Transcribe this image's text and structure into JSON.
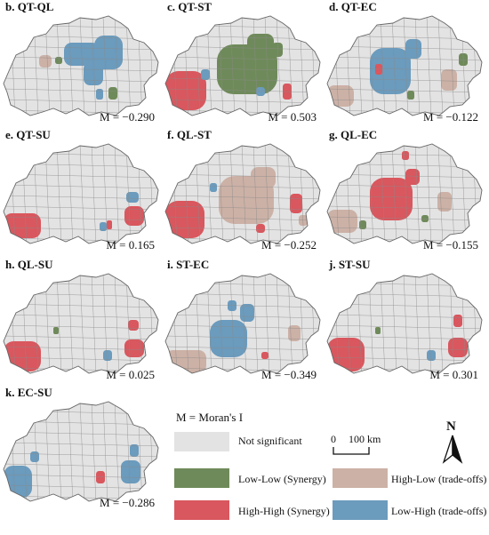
{
  "panels": [
    {
      "id": "b",
      "title": "b. QT-QL",
      "moran": "M = −0.290",
      "col": 0,
      "row": 0,
      "patches": [
        [
          "lh",
          68,
          30,
          40,
          26
        ],
        [
          "lh",
          102,
          22,
          32,
          38
        ],
        [
          "lh",
          90,
          52,
          22,
          26
        ],
        [
          "hl",
          40,
          44,
          14,
          14
        ],
        [
          "ll",
          58,
          46,
          8,
          8
        ],
        [
          "ll",
          118,
          80,
          10,
          14
        ],
        [
          "lh",
          104,
          82,
          8,
          12
        ]
      ]
    },
    {
      "id": "c",
      "title": "c. QT-ST",
      "moran": "M = 0.503",
      "col": 1,
      "row": 0,
      "patches": [
        [
          "ll",
          58,
          32,
          68,
          56
        ],
        [
          "ll",
          92,
          20,
          30,
          24
        ],
        [
          "hh",
          0,
          62,
          46,
          44
        ],
        [
          "hh",
          132,
          76,
          10,
          18
        ],
        [
          "lh",
          102,
          80,
          10,
          10
        ],
        [
          "lh",
          40,
          60,
          10,
          12
        ],
        [
          "ll",
          120,
          30,
          12,
          16
        ]
      ]
    },
    {
      "id": "d",
      "title": "d. QT-EC",
      "moran": "M = −0.122",
      "col": 2,
      "row": 0,
      "patches": [
        [
          "lh",
          48,
          36,
          46,
          52
        ],
        [
          "lh",
          88,
          26,
          18,
          22
        ],
        [
          "hl",
          0,
          78,
          30,
          24
        ],
        [
          "hl",
          128,
          60,
          18,
          24
        ],
        [
          "ll",
          148,
          42,
          10,
          14
        ],
        [
          "hh",
          54,
          54,
          8,
          12
        ],
        [
          "ll",
          90,
          84,
          8,
          10
        ]
      ]
    },
    {
      "id": "e",
      "title": "e. QT-SU",
      "moran": "M = 0.165",
      "col": 0,
      "row": 1,
      "patches": [
        [
          "hh",
          0,
          78,
          42,
          28
        ],
        [
          "hh",
          136,
          70,
          22,
          22
        ],
        [
          "lh",
          138,
          54,
          14,
          12
        ],
        [
          "lh",
          108,
          88,
          8,
          10
        ],
        [
          "hh",
          116,
          86,
          6,
          10
        ]
      ]
    },
    {
      "id": "f",
      "title": "f. QL-ST",
      "moran": "M = −0.252",
      "col": 1,
      "row": 1,
      "patches": [
        [
          "hl",
          60,
          36,
          62,
          54
        ],
        [
          "hl",
          96,
          26,
          28,
          24
        ],
        [
          "hh",
          0,
          64,
          44,
          42
        ],
        [
          "hh",
          140,
          56,
          14,
          22
        ],
        [
          "hh",
          102,
          90,
          10,
          10
        ],
        [
          "lh",
          50,
          44,
          8,
          10
        ],
        [
          "hl",
          150,
          80,
          10,
          12
        ]
      ]
    },
    {
      "id": "g",
      "title": "g. QL-EC",
      "moran": "M = −0.155",
      "col": 2,
      "row": 1,
      "patches": [
        [
          "hh",
          48,
          38,
          48,
          48
        ],
        [
          "hh",
          88,
          28,
          16,
          18
        ],
        [
          "hl",
          0,
          74,
          34,
          26
        ],
        [
          "hl",
          124,
          54,
          16,
          22
        ],
        [
          "hh",
          84,
          8,
          8,
          10
        ],
        [
          "ll",
          36,
          86,
          8,
          10
        ],
        [
          "ll",
          106,
          80,
          8,
          8
        ]
      ]
    },
    {
      "id": "h",
      "title": "h. QL-SU",
      "moran": "M = 0.025",
      "col": 0,
      "row": 2,
      "patches": [
        [
          "hh",
          0,
          76,
          42,
          34
        ],
        [
          "hh",
          136,
          74,
          22,
          20
        ],
        [
          "hh",
          140,
          52,
          12,
          12
        ],
        [
          "lh",
          112,
          86,
          10,
          12
        ],
        [
          "ll",
          56,
          60,
          6,
          8
        ]
      ]
    },
    {
      "id": "i",
      "title": "i. ST-EC",
      "moran": "M = −0.349",
      "col": 1,
      "row": 2,
      "patches": [
        [
          "lh",
          50,
          52,
          42,
          42
        ],
        [
          "lh",
          84,
          34,
          16,
          20
        ],
        [
          "hl",
          0,
          86,
          46,
          26
        ],
        [
          "hl",
          138,
          58,
          14,
          18
        ],
        [
          "lh",
          70,
          30,
          10,
          12
        ],
        [
          "hh",
          108,
          88,
          8,
          8
        ]
      ]
    },
    {
      "id": "j",
      "title": "j. ST-SU",
      "moran": "M = 0.301",
      "col": 2,
      "row": 2,
      "patches": [
        [
          "hh",
          0,
          72,
          42,
          38
        ],
        [
          "hh",
          136,
          72,
          22,
          22
        ],
        [
          "hh",
          142,
          46,
          10,
          14
        ],
        [
          "lh",
          112,
          86,
          10,
          12
        ],
        [
          "ll",
          54,
          60,
          6,
          8
        ]
      ]
    },
    {
      "id": "k",
      "title": "k. EC-SU",
      "moran": "M = −0.286",
      "col": 0,
      "row": 3,
      "patches": [
        [
          "lh",
          0,
          72,
          32,
          36
        ],
        [
          "lh",
          132,
          66,
          22,
          26
        ],
        [
          "lh",
          142,
          48,
          10,
          14
        ],
        [
          "hh",
          104,
          78,
          10,
          14
        ],
        [
          "lh",
          30,
          56,
          10,
          12
        ]
      ]
    }
  ],
  "legend": {
    "moran_def": "M =  Moran's I",
    "items": [
      {
        "key": "ns",
        "label": "Not significant",
        "color": "#e3e3e3"
      },
      {
        "key": "ll",
        "label": "Low-Low (Synergy)",
        "color": "#6f8a5a"
      },
      {
        "key": "hh",
        "label": "High-High (Synergy)",
        "color": "#d9575e"
      },
      {
        "key": "hl",
        "label": "High-Low (trade-offs)",
        "color": "#ccb1a6"
      },
      {
        "key": "lh",
        "label": "Low-High (trade-offs)",
        "color": "#6b9bbd"
      }
    ],
    "scale_zero": "0",
    "scale_label": "100 km",
    "north": "N"
  }
}
